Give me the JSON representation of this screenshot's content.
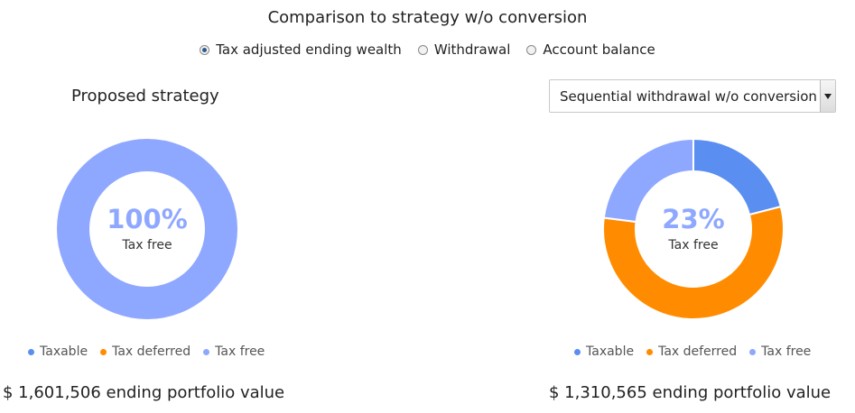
{
  "header": {
    "title": "Comparison to strategy w/o conversion"
  },
  "view_options": [
    {
      "label": "Tax adjusted ending wealth",
      "checked": true
    },
    {
      "label": "Withdrawal",
      "checked": false
    },
    {
      "label": "Account balance",
      "checked": false
    }
  ],
  "left_panel": {
    "title": "Proposed strategy",
    "summary": "$ 1,601,506 ending portfolio value"
  },
  "right_panel": {
    "selected_strategy": "Sequential withdrawal w/o conversion",
    "summary": "$ 1,310,565 ending portfolio value"
  },
  "colors": {
    "taxable": "#5a8ef0",
    "tax_deferred": "#ff8c00",
    "tax_free": "#8fa8ff"
  },
  "chart_data": [
    {
      "type": "pie",
      "categories": [
        "Taxable",
        "Tax deferred",
        "Tax free"
      ],
      "values": [
        0,
        0,
        100
      ],
      "center_value": "100%",
      "center_label": "Tax free",
      "legend": "bottom"
    },
    {
      "type": "pie",
      "categories": [
        "Taxable",
        "Tax deferred",
        "Tax free"
      ],
      "values": [
        21,
        56,
        23
      ],
      "center_value": "23%",
      "center_label": "Tax free",
      "legend": "bottom"
    }
  ]
}
